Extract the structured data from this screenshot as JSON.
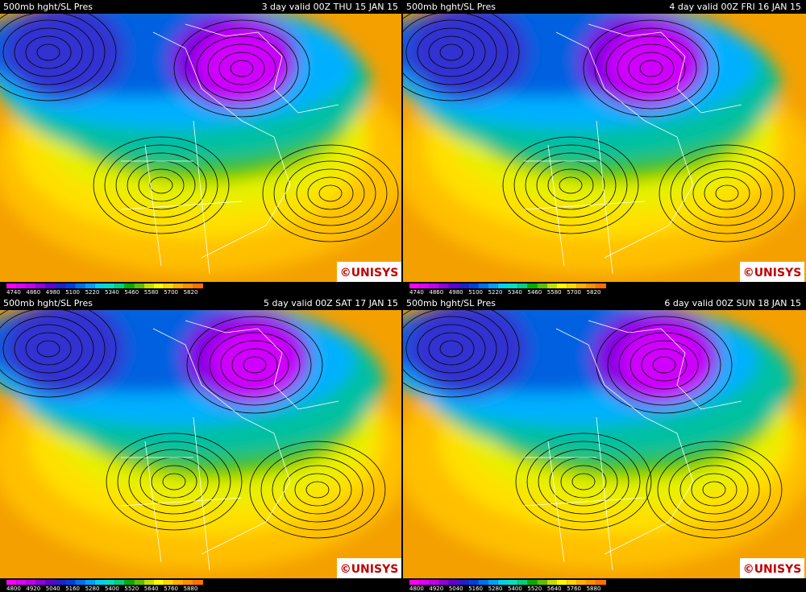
{
  "panels": [
    {
      "title": "500mb hght/SL Pres",
      "valid": "3 day valid 00Z THU 15 JAN 15",
      "legend": [
        4740,
        4860,
        4980,
        5100,
        5220,
        5340,
        5460,
        5580,
        5700,
        5820
      ],
      "logo": "©UNISYS"
    },
    {
      "title": "500mb hght/SL Pres",
      "valid": "4 day valid 00Z FRI 16 JAN 15",
      "legend": [
        4740,
        4860,
        4980,
        5100,
        5220,
        5340,
        5460,
        5580,
        5700,
        5820
      ],
      "logo": "©UNISYS"
    },
    {
      "title": "500mb hght/SL Pres",
      "valid": "5 day valid 00Z SAT 17 JAN 15",
      "legend": [
        4800,
        4920,
        5040,
        5160,
        5280,
        5400,
        5520,
        5640,
        5760,
        5880
      ],
      "logo": "©UNISYS"
    },
    {
      "title": "500mb hght/SL Pres",
      "valid": "6 day valid 00Z SUN 18 JAN 15",
      "legend": [
        4800,
        4920,
        5040,
        5160,
        5280,
        5400,
        5520,
        5640,
        5760,
        5880
      ],
      "logo": "©UNISYS"
    }
  ]
}
